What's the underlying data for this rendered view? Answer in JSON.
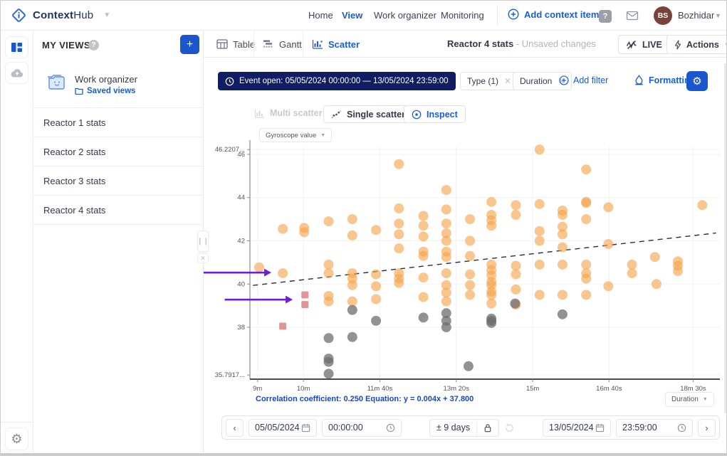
{
  "brand": {
    "context": "Context",
    "hub": "Hub"
  },
  "topnav": {
    "links": [
      {
        "label": "Home",
        "active": false
      },
      {
        "label": "View",
        "active": true
      },
      {
        "label": "Work organizer",
        "active": false
      },
      {
        "label": "Monitoring",
        "active": false
      }
    ],
    "add_button": "Add context item",
    "user_initials": "BS",
    "user_name": "Bozhidar"
  },
  "sidebar": {
    "section_title": "MY VIEWS",
    "workspace": {
      "title": "Work organizer",
      "link": "Saved views"
    },
    "views": [
      "Reactor 1 stats",
      "Reactor 2 stats",
      "Reactor 3 stats",
      "Reactor 4 stats"
    ]
  },
  "tabs": [
    {
      "label": "Table",
      "active": false
    },
    {
      "label": "Gantt",
      "active": false
    },
    {
      "label": "Scatter",
      "active": true
    }
  ],
  "view_header": {
    "title": "Reactor 4 stats",
    "status": "- Unsaved changes",
    "live_label": "LIVE",
    "actions_label": "Actions"
  },
  "filter_bar": {
    "event_filter": "Event open: 05/05/2024 00:00:00 — 13/05/2024 23:59:00",
    "chips": [
      {
        "label": "Type (1)"
      },
      {
        "label": "Duration"
      }
    ],
    "add_filter_label": "Add filter",
    "formatting_label": "Formatting"
  },
  "scatter_toolbar": {
    "multi_label": "Multi scatter",
    "single_label": "Single scatter",
    "inspect_label": "Inspect"
  },
  "timebar": {
    "start_date": "05/05/2024",
    "start_time": "00:00:00",
    "range": "± 9 days",
    "end_date": "13/05/2024",
    "end_time": "23:59:00"
  },
  "colors": {
    "accent_blue": "#1A5CD6",
    "navy_pill": "#101D63",
    "orange_point": "#F6A34A",
    "gray_point": "#6E6E6E",
    "pink_point": "#D97C7C",
    "purple_arrow": "#6D1FD8",
    "avatar_brown": "#7A4238"
  },
  "chart_data": {
    "type": "scatter",
    "title": "",
    "y_selector_label": "Gyroscope value",
    "x_selector_label": "Duration",
    "stats_text": "Correlation coefficient: 0.250 Equation: y = 0.004x + 37.800",
    "correlation_coefficient": 0.25,
    "equation": {
      "slope": 0.004,
      "intercept": 37.8
    },
    "x_axis": {
      "label": "Duration",
      "unit": "seconds",
      "min": 530,
      "max": 1145,
      "ticks": [
        {
          "value": 540,
          "label": "9m"
        },
        {
          "value": 600,
          "label": "10m"
        },
        {
          "value": 700,
          "label": "11m 40s"
        },
        {
          "value": 800,
          "label": "13m 20s"
        },
        {
          "value": 900,
          "label": "15m"
        },
        {
          "value": 1000,
          "label": "16m 40s"
        },
        {
          "value": 1110,
          "label": "18m 30s"
        }
      ]
    },
    "y_axis": {
      "label": "Gyroscope value",
      "min": 35.6,
      "max": 46.36,
      "ticks": [
        {
          "value": 46.2207,
          "label": "46.2207..."
        },
        {
          "value": 46,
          "label": "46"
        },
        {
          "value": 44,
          "label": "44"
        },
        {
          "value": 42,
          "label": "42"
        },
        {
          "value": 40,
          "label": "40"
        },
        {
          "value": 38,
          "label": "38"
        },
        {
          "value": 35.7917,
          "label": "35.7917..."
        }
      ]
    },
    "trendline": {
      "slope": 0.004,
      "intercept": 37.8,
      "style": "dashed",
      "x_start": 534,
      "x_end": 1140
    },
    "series": [
      {
        "name": "gyroscope-orange",
        "marker": "circle",
        "color": "#F6A34A",
        "opacity": 0.62,
        "radius": 7,
        "points": [
          [
            542,
            40.77
          ],
          [
            573,
            42.55
          ],
          [
            573,
            40.5
          ],
          [
            601,
            42.6
          ],
          [
            601,
            42.4
          ],
          [
            633,
            42.9
          ],
          [
            633,
            40.9
          ],
          [
            633,
            40.5
          ],
          [
            633,
            39.45
          ],
          [
            633,
            39.2
          ],
          [
            664,
            43.0
          ],
          [
            664,
            42.25
          ],
          [
            664,
            40.5
          ],
          [
            664,
            40.25
          ],
          [
            664,
            39.95
          ],
          [
            664,
            39.2
          ],
          [
            695,
            42.5
          ],
          [
            695,
            40.45
          ],
          [
            695,
            39.9
          ],
          [
            695,
            39.3
          ],
          [
            725,
            45.55
          ],
          [
            725,
            43.5
          ],
          [
            725,
            42.8
          ],
          [
            725,
            42.3
          ],
          [
            725,
            41.65
          ],
          [
            725,
            40.5
          ],
          [
            725,
            40.25
          ],
          [
            725,
            40.05
          ],
          [
            757,
            43.15
          ],
          [
            757,
            42.7
          ],
          [
            757,
            42.2
          ],
          [
            757,
            41.5
          ],
          [
            757,
            41.3
          ],
          [
            757,
            40.3
          ],
          [
            757,
            39.4
          ],
          [
            787,
            44.35
          ],
          [
            787,
            43.45
          ],
          [
            787,
            42.8
          ],
          [
            787,
            42.35
          ],
          [
            787,
            42.0
          ],
          [
            787,
            41.5
          ],
          [
            787,
            41.25
          ],
          [
            787,
            40.5
          ],
          [
            787,
            39.95
          ],
          [
            787,
            39.6
          ],
          [
            787,
            39.2
          ],
          [
            818,
            43.0
          ],
          [
            818,
            42.0
          ],
          [
            818,
            41.3
          ],
          [
            818,
            40.45
          ],
          [
            818,
            39.95
          ],
          [
            818,
            39.5
          ],
          [
            846,
            43.8
          ],
          [
            846,
            43.2
          ],
          [
            846,
            42.95
          ],
          [
            846,
            42.7
          ],
          [
            846,
            40.9
          ],
          [
            846,
            40.65
          ],
          [
            846,
            40.4
          ],
          [
            846,
            40.1
          ],
          [
            846,
            39.95
          ],
          [
            846,
            39.65
          ],
          [
            846,
            39.5
          ],
          [
            846,
            39.1
          ],
          [
            878,
            43.65
          ],
          [
            878,
            43.2
          ],
          [
            878,
            40.85
          ],
          [
            878,
            40.45
          ],
          [
            878,
            39.75
          ],
          [
            878,
            39.05
          ],
          [
            909,
            46.22
          ],
          [
            909,
            43.7
          ],
          [
            909,
            42.45
          ],
          [
            909,
            42.0
          ],
          [
            909,
            40.9
          ],
          [
            909,
            39.5
          ],
          [
            939,
            43.4
          ],
          [
            939,
            43.2
          ],
          [
            939,
            42.65
          ],
          [
            939,
            42.3
          ],
          [
            939,
            41.7
          ],
          [
            939,
            40.9
          ],
          [
            939,
            39.5
          ],
          [
            970,
            45.3
          ],
          [
            970,
            43.75
          ],
          [
            970,
            43.8
          ],
          [
            970,
            43.0
          ],
          [
            970,
            40.9
          ],
          [
            970,
            40.5
          ],
          [
            970,
            40.25
          ],
          [
            970,
            39.5
          ],
          [
            999,
            43.55
          ],
          [
            999,
            41.85
          ],
          [
            999,
            39.9
          ],
          [
            1030,
            40.9
          ],
          [
            1030,
            40.5
          ],
          [
            1060,
            41.25
          ],
          [
            1062,
            40.0
          ],
          [
            1090,
            41.05
          ],
          [
            1090,
            40.85
          ],
          [
            1090,
            40.6
          ],
          [
            1122,
            43.65
          ]
        ]
      },
      {
        "name": "gyroscope-gray",
        "marker": "circle",
        "color": "#6E6E6E",
        "opacity": 0.75,
        "radius": 7,
        "points": [
          [
            633,
            37.5
          ],
          [
            633,
            36.55
          ],
          [
            633,
            36.4
          ],
          [
            633,
            35.85
          ],
          [
            664,
            38.8
          ],
          [
            664,
            37.55
          ],
          [
            695,
            38.3
          ],
          [
            757,
            38.45
          ],
          [
            787,
            38.65
          ],
          [
            787,
            38.3
          ],
          [
            787,
            38.0
          ],
          [
            816,
            36.2
          ],
          [
            846,
            38.4
          ],
          [
            846,
            38.3
          ],
          [
            846,
            38.2
          ],
          [
            877,
            39.1
          ],
          [
            939,
            38.6
          ]
        ]
      },
      {
        "name": "gyroscope-pink",
        "marker": "square",
        "color": "#D97C7C",
        "opacity": 0.8,
        "size": 10,
        "points": [
          [
            573,
            38.05
          ],
          [
            602,
            39.5
          ],
          [
            602,
            39.05
          ]
        ]
      }
    ],
    "annotations": {
      "arrows": [
        {
          "tail": [
            469,
            40.53
          ],
          "tip": [
            558,
            40.53
          ]
        },
        {
          "tail": [
            497,
            39.28
          ],
          "tip": [
            586,
            39.28
          ]
        }
      ],
      "arrow_color": "#6D1FD8"
    },
    "legend": "none",
    "grid": true
  }
}
